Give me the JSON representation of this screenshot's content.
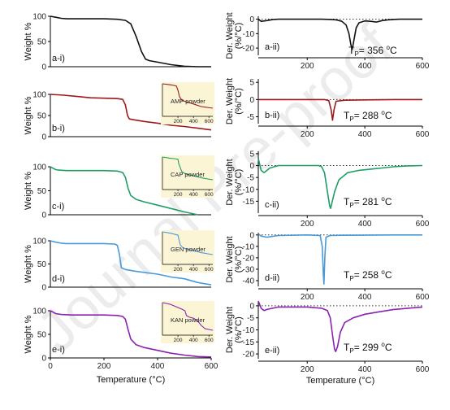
{
  "watermark": "Journal Pre-proof",
  "chart_data": [
    {
      "id": "a-i",
      "type": "line",
      "panel_label": "a-i)",
      "ylabel": "Weight %",
      "xlabel": "",
      "xlim": [
        0,
        600
      ],
      "ylim": [
        0,
        100
      ],
      "xticks": [],
      "yticks": [
        0,
        50,
        100
      ],
      "color": "#111111",
      "series": [
        {
          "x": [
            0,
            20,
            40,
            60,
            100,
            150,
            200,
            250,
            280,
            300,
            320,
            340,
            355,
            370,
            400,
            450,
            500,
            550,
            600
          ],
          "y": [
            100,
            98,
            96,
            95,
            95,
            95,
            95,
            94,
            92,
            85,
            60,
            30,
            15,
            12,
            9,
            4,
            1,
            0,
            0
          ]
        }
      ]
    },
    {
      "id": "a-ii",
      "type": "line",
      "panel_label": "a-ii)",
      "ylabel": "Der. Weight (%/°C)",
      "xlim": [
        30,
        600
      ],
      "ylim": [
        -25,
        2
      ],
      "xticks": [
        200,
        400,
        600
      ],
      "yticks": [
        -20,
        -10,
        0
      ],
      "color": "#111111",
      "baseline_dotted": true,
      "annotation": {
        "text": "T",
        "sub": "P",
        "rest": "= 356 ",
        "sup": "o",
        "unit": "C"
      },
      "series": [
        {
          "x": [
            30,
            40,
            60,
            80,
            100,
            200,
            250,
            280,
            300,
            320,
            335,
            345,
            352,
            356,
            360,
            370,
            380,
            400,
            420,
            440,
            460,
            480,
            500,
            520,
            560,
            600
          ],
          "y": [
            0,
            -1.5,
            -1,
            -0.3,
            0,
            0,
            0,
            -0.2,
            -0.5,
            -1.5,
            -4,
            -10,
            -18,
            -21,
            -17,
            -6,
            -2.5,
            -1.2,
            -1.5,
            -2,
            -1,
            -0.5,
            -0.2,
            0,
            0,
            0
          ]
        }
      ]
    },
    {
      "id": "b-i",
      "type": "line",
      "panel_label": "b-i)",
      "ylabel": "Weight %",
      "xlim": [
        0,
        600
      ],
      "ylim": [
        0,
        100
      ],
      "xticks": [],
      "yticks": [
        0,
        50,
        100
      ],
      "color": "#9b1a1a",
      "series": [
        {
          "x": [
            0,
            50,
            100,
            150,
            200,
            250,
            270,
            280,
            288,
            295,
            310,
            350,
            400,
            450,
            500,
            550,
            600
          ],
          "y": [
            100,
            98,
            95,
            92,
            91,
            90,
            88,
            75,
            50,
            42,
            40,
            36,
            32,
            27,
            24,
            20,
            16
          ]
        }
      ],
      "inset": {
        "label": "AMP powder",
        "xticks": [
          200,
          400,
          600
        ],
        "xlim": [
          0,
          650
        ],
        "ylim": [
          0,
          100
        ],
        "series": [
          {
            "x": [
              0,
              100,
              150,
              180,
              200,
              220,
              250,
              300,
              400,
              500,
              650
            ],
            "y": [
              100,
              97,
              95,
              93,
              80,
              60,
              50,
              45,
              38,
              30,
              25
            ]
          }
        ]
      }
    },
    {
      "id": "b-ii",
      "type": "line",
      "panel_label": "b-ii)",
      "ylabel": "Der. Weight (%/°C)",
      "xlim": [
        30,
        600
      ],
      "ylim": [
        -7,
        6
      ],
      "xticks": [
        200,
        400,
        600
      ],
      "yticks": [
        -5,
        0,
        5
      ],
      "color": "#9b1a1a",
      "baseline_dotted": true,
      "annotation": {
        "text": "T",
        "sub": "P",
        "rest": "= 288 ",
        "sup": "o",
        "unit": "C"
      },
      "series": [
        {
          "x": [
            30,
            100,
            200,
            260,
            275,
            283,
            288,
            293,
            300,
            330,
            400,
            500,
            600
          ],
          "y": [
            0,
            0,
            0,
            0,
            -0.3,
            -3,
            -6,
            -3,
            -0.5,
            -0.2,
            -0.1,
            0,
            0
          ]
        }
      ]
    },
    {
      "id": "c-i",
      "type": "line",
      "panel_label": "c-i)",
      "ylabel": "Weight %",
      "xlim": [
        0,
        600
      ],
      "ylim": [
        0,
        100
      ],
      "xticks": [],
      "yticks": [
        0,
        50,
        100
      ],
      "color": "#1e9e66",
      "series": [
        {
          "x": [
            0,
            10,
            20,
            30,
            60,
            100,
            200,
            250,
            270,
            280,
            290,
            300,
            320,
            350,
            400,
            450,
            500,
            550
          ],
          "y": [
            100,
            97,
            94,
            93,
            92,
            92,
            92,
            91,
            88,
            78,
            55,
            40,
            32,
            27,
            20,
            13,
            6,
            0
          ]
        }
      ],
      "inset": {
        "label": "CAP powder",
        "xticks": [
          200,
          400,
          600
        ],
        "xlim": [
          0,
          650
        ],
        "ylim": [
          0,
          100
        ],
        "series": [
          {
            "x": [
              0,
              100,
              150,
              200,
              210,
              250,
              300,
              400,
              500,
              650
            ],
            "y": [
              100,
              96,
              95,
              93,
              80,
              55,
              48,
              42,
              36,
              30
            ]
          }
        ]
      }
    },
    {
      "id": "c-ii",
      "type": "line",
      "panel_label": "c-ii)",
      "ylabel": "Der. Weight (%/°C)",
      "xlim": [
        30,
        600
      ],
      "ylim": [
        -20,
        6
      ],
      "xticks": [
        200,
        400,
        600
      ],
      "yticks": [
        -15,
        -10,
        -5,
        0,
        5
      ],
      "color": "#1e9e66",
      "baseline_dotted": true,
      "annotation": {
        "text": "T",
        "sub": "P",
        "rest": "= 281 ",
        "sup": "o",
        "unit": "C"
      },
      "series": [
        {
          "x": [
            30,
            40,
            50,
            70,
            100,
            200,
            240,
            250,
            260,
            270,
            278,
            281,
            285,
            295,
            310,
            340,
            380,
            420,
            460,
            500,
            540,
            600
          ],
          "y": [
            3,
            -2,
            -3,
            -1,
            0,
            0,
            0,
            -0.5,
            -3,
            -11,
            -17,
            -18,
            -16,
            -11,
            -6,
            -3,
            -2,
            -1.5,
            -1,
            -0.5,
            -0.2,
            0
          ]
        }
      ]
    },
    {
      "id": "d-i",
      "type": "line",
      "panel_label": "d-i)",
      "ylabel": "Weight %",
      "xlim": [
        0,
        600
      ],
      "ylim": [
        0,
        100
      ],
      "xticks": [],
      "yticks": [
        0,
        50,
        100
      ],
      "color": "#4a9ad8",
      "series": [
        {
          "x": [
            0,
            20,
            40,
            60,
            100,
            200,
            240,
            250,
            258,
            265,
            280,
            320,
            400,
            450,
            500,
            550,
            600
          ],
          "y": [
            100,
            97,
            95,
            94,
            94,
            94,
            93,
            90,
            70,
            42,
            38,
            34,
            28,
            22,
            18,
            10,
            5
          ]
        }
      ],
      "inset": {
        "label": "GEN powder",
        "xticks": [
          200,
          400,
          600
        ],
        "xlim": [
          0,
          650
        ],
        "ylim": [
          0,
          100
        ],
        "series": [
          {
            "x": [
              0,
              100,
              150,
              200,
              210,
              230,
              260,
              300,
              400,
              500,
              650
            ],
            "y": [
              100,
              96,
              93,
              90,
              80,
              60,
              52,
              48,
              42,
              36,
              30
            ]
          }
        ]
      }
    },
    {
      "id": "d-ii",
      "type": "line",
      "panel_label": "d-ii)",
      "ylabel": "Der. Weight (%/°C)",
      "xlim": [
        30,
        600
      ],
      "ylim": [
        -45,
        2
      ],
      "xticks": [
        200,
        400,
        600
      ],
      "yticks": [
        -40,
        -30,
        -20,
        -10,
        0
      ],
      "color": "#4a9ad8",
      "baseline_dotted": true,
      "annotation": {
        "text": "T",
        "sub": "P",
        "rest": "= 258 ",
        "sup": "o",
        "unit": "C"
      },
      "series": [
        {
          "x": [
            30,
            40,
            60,
            100,
            200,
            245,
            252,
            256,
            258,
            261,
            265,
            280,
            320,
            400,
            500,
            600
          ],
          "y": [
            1,
            -1,
            -2,
            -0.5,
            0,
            -0.5,
            -10,
            -35,
            -43,
            -20,
            -2,
            -0.5,
            -0.3,
            -0.2,
            0,
            0
          ]
        }
      ]
    },
    {
      "id": "e-i",
      "type": "line",
      "panel_label": "e-i)",
      "ylabel": "Weight %",
      "xlabel": "Temperature (°C)",
      "xlim": [
        0,
        600
      ],
      "ylim": [
        0,
        100
      ],
      "xticks": [
        0,
        200,
        400,
        600
      ],
      "yticks": [
        0,
        50,
        100
      ],
      "color": "#8b22b0",
      "series": [
        {
          "x": [
            0,
            10,
            20,
            40,
            80,
            150,
            200,
            250,
            270,
            280,
            290,
            300,
            320,
            350,
            400,
            450,
            500,
            550,
            600
          ],
          "y": [
            100,
            97,
            94,
            92,
            91,
            91,
            91,
            90,
            88,
            82,
            60,
            40,
            28,
            22,
            16,
            10,
            6,
            3,
            2
          ]
        }
      ],
      "inset": {
        "label": "KAN powder",
        "xticks": [
          200,
          400,
          600
        ],
        "xlim": [
          0,
          650
        ],
        "ylim": [
          0,
          100
        ],
        "series": [
          {
            "x": [
              0,
              100,
              150,
              200,
              250,
              290,
              310,
              350,
              400,
              450,
              500,
              550,
              650
            ],
            "y": [
              100,
              95,
              90,
              85,
              80,
              75,
              60,
              55,
              52,
              45,
              30,
              20,
              15
            ]
          }
        ]
      }
    },
    {
      "id": "e-ii",
      "type": "line",
      "panel_label": "e-ii)",
      "ylabel": "Der. Weight (%/°C)",
      "xlabel": "Temperature (°C)",
      "xlim": [
        30,
        600
      ],
      "ylim": [
        -22,
        2
      ],
      "xticks": [
        200,
        400,
        600
      ],
      "yticks": [
        -20,
        -15,
        -10,
        -5,
        0
      ],
      "color": "#8b22b0",
      "baseline_dotted": true,
      "annotation": {
        "text": "T",
        "sub": "P",
        "rest": "= 299 ",
        "sup": "o",
        "unit": "C"
      },
      "series": [
        {
          "x": [
            30,
            40,
            50,
            60,
            80,
            100,
            150,
            200,
            250,
            270,
            280,
            290,
            295,
            299,
            305,
            315,
            330,
            360,
            400,
            450,
            500,
            550,
            600
          ],
          "y": [
            2,
            -1,
            -2,
            -1.5,
            -1,
            -0.5,
            -0.5,
            -0.5,
            -1,
            -2,
            -5,
            -14,
            -18,
            -19,
            -17,
            -11,
            -7,
            -5,
            -3.5,
            -2.5,
            -1.5,
            -1,
            -0.5
          ]
        }
      ]
    }
  ]
}
